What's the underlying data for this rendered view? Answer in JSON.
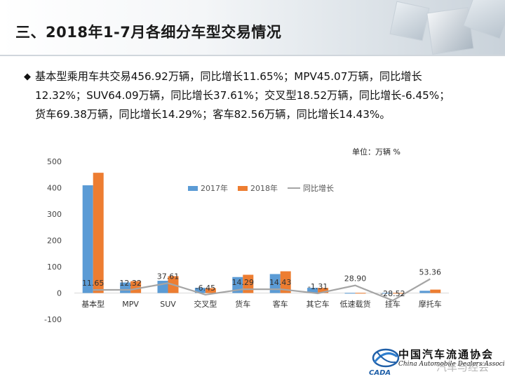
{
  "header": {
    "title": "三、2018年1-7月各细分车型交易情况"
  },
  "summary": {
    "bullet": "◆",
    "lines": [
      "基本型乘用车共交易456.92万辆，同比增长11.65%；MPV45.07万辆，同比增长",
      "12.32%；SUV64.09万辆，同比增长37.61%；交叉型18.52万辆，同比增长-6.45%；",
      "货车69.38万辆，同比增长14.29%；客车82.56万辆，同比增长14.43%。"
    ]
  },
  "chart_data": {
    "type": "bar",
    "unit_label": "单位：万辆  %",
    "categories": [
      "基本型",
      "MPV",
      "SUV",
      "交叉型",
      "货车",
      "客车",
      "其它车",
      "低速载货",
      "挂车",
      "摩托车"
    ],
    "series": [
      {
        "name": "2017年",
        "type": "bar",
        "color": "#5b9bd5",
        "values": [
          409.3,
          40.1,
          46.6,
          19.8,
          60.7,
          72.1,
          19.8,
          0.4,
          0.5,
          8.5
        ]
      },
      {
        "name": "2018年",
        "type": "bar",
        "color": "#ed7d31",
        "values": [
          456.92,
          45.07,
          64.09,
          18.52,
          69.38,
          82.56,
          19.5,
          0.5,
          0.4,
          13.0
        ]
      },
      {
        "name": "同比增长",
        "type": "line",
        "color": "#a5a5a5",
        "values": [
          11.65,
          12.32,
          37.61,
          -6.45,
          14.29,
          14.43,
          -1.31,
          28.9,
          -28.52,
          53.36
        ]
      }
    ],
    "line_labels": [
      "11.65",
      "12.32",
      "37.61",
      "-6.45",
      "14.29",
      "14.43",
      "-1.31",
      "28.90",
      "-28.52",
      "53.36"
    ],
    "y_ticks": [
      "500",
      "400",
      "300",
      "200",
      "100",
      "0",
      "-100"
    ],
    "ylim": [
      -100,
      500
    ],
    "legend": "top-center",
    "grid": false
  },
  "logo": {
    "name": "中国汽车流通协会",
    "english": "China Automobile Dealers Association",
    "mark": "CADA"
  },
  "watermark": "汽车与经会"
}
